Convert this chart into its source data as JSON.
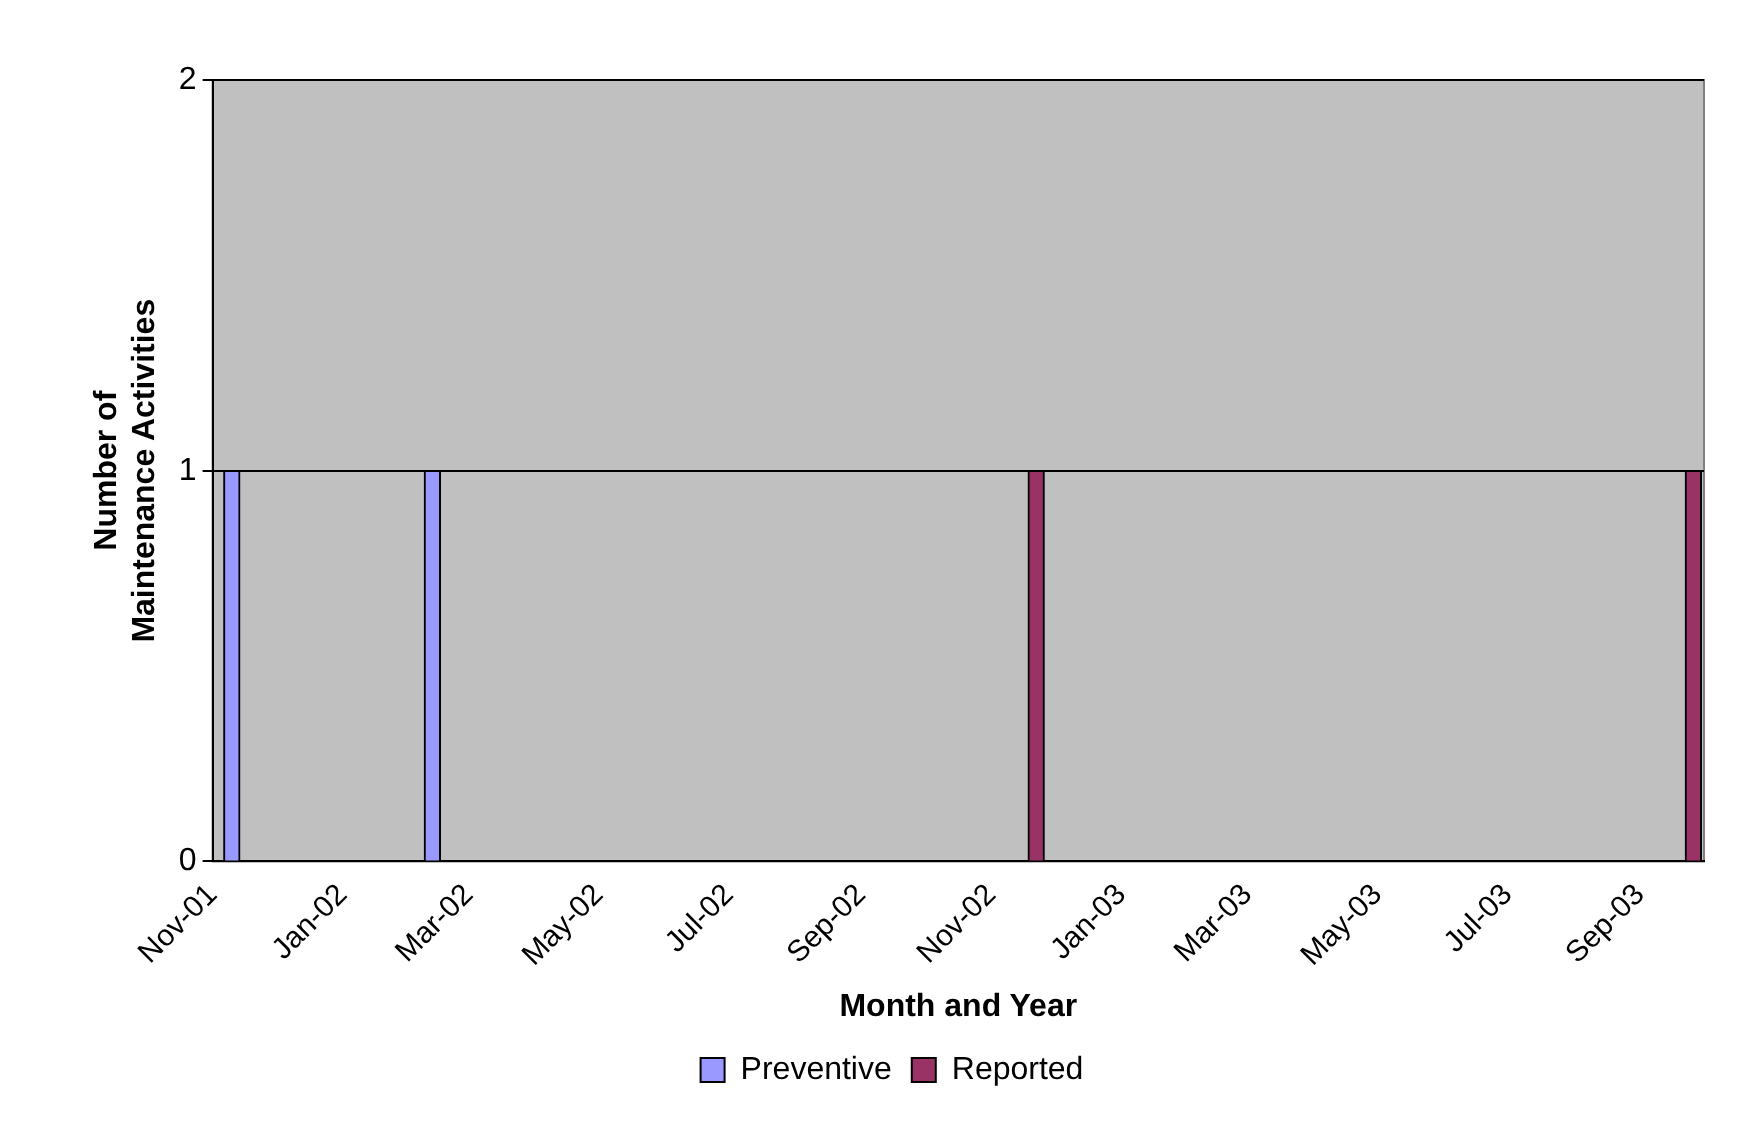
{
  "chart_data": {
    "type": "bar",
    "xlabel": "Month and Year",
    "ylabel": "Number of Maintenance Activities",
    "xlim": [
      "2001-11-01",
      "2003-10-01"
    ],
    "xticks": [
      {
        "value": "2001-11-01",
        "label": "Nov-01"
      },
      {
        "value": "2002-01-01",
        "label": "Jan-02"
      },
      {
        "value": "2002-03-01",
        "label": "Mar-02"
      },
      {
        "value": "2002-05-01",
        "label": "May-02"
      },
      {
        "value": "2002-07-01",
        "label": "Jul-02"
      },
      {
        "value": "2002-09-01",
        "label": "Sep-02"
      },
      {
        "value": "2002-11-01",
        "label": "Nov-02"
      },
      {
        "value": "2003-01-01",
        "label": "Jan-03"
      },
      {
        "value": "2003-03-01",
        "label": "Mar-03"
      },
      {
        "value": "2003-05-01",
        "label": "May-03"
      },
      {
        "value": "2003-07-01",
        "label": "Jul-03"
      },
      {
        "value": "2003-09-01",
        "label": "Sep-03"
      }
    ],
    "ylim": [
      0,
      2
    ],
    "yticks": [
      0,
      1,
      2
    ],
    "grid": "y",
    "legend": "bottom",
    "series": [
      {
        "name": "Preventive",
        "color": "#9999ff",
        "x": [
          "2001-11-10",
          "2002-02-12"
        ],
        "values": [
          1,
          1
        ]
      },
      {
        "name": "Reported",
        "color": "#993366",
        "x": [
          "2002-11-22",
          "2003-09-26"
        ],
        "values": [
          1,
          1
        ]
      }
    ]
  }
}
